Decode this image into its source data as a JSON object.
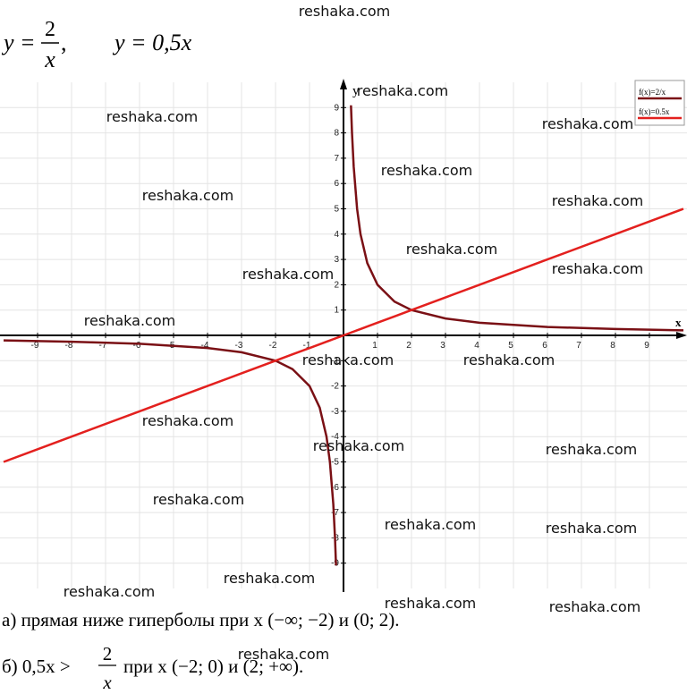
{
  "header": {
    "formula_left": "y =",
    "formula_num": "2",
    "formula_den": "x",
    "formula_comma": ",",
    "formula_right": "y = 0,5x"
  },
  "chart_data": {
    "type": "line",
    "x": [
      -10,
      -8,
      -6,
      -4,
      -3,
      -2,
      -1.5,
      -1,
      -0.7,
      -0.5,
      -0.4,
      -0.3,
      -0.25,
      -0.22,
      0,
      0.22,
      0.25,
      0.3,
      0.4,
      0.5,
      0.7,
      1,
      1.5,
      2,
      3,
      4,
      6,
      8,
      10
    ],
    "series": [
      {
        "name": "f(x)=2/x",
        "color": "#7a1015",
        "values": [
          -0.2,
          -0.25,
          -0.333,
          -0.5,
          -0.667,
          -1,
          -1.333,
          -2,
          -2.857,
          -4,
          -5,
          -6.667,
          -8,
          -9.09,
          null,
          9.09,
          8,
          6.667,
          5,
          4,
          2.857,
          2,
          1.333,
          1,
          0.667,
          0.5,
          0.333,
          0.25,
          0.2
        ]
      },
      {
        "name": "f(x)=0.5x",
        "color": "#e3201e",
        "values": [
          -5,
          -4,
          -3,
          -2,
          -1.5,
          -1,
          -0.75,
          -0.5,
          -0.35,
          -0.25,
          -0.2,
          -0.15,
          -0.125,
          -0.11,
          0,
          0.11,
          0.125,
          0.15,
          0.2,
          0.25,
          0.35,
          0.5,
          0.75,
          1,
          1.5,
          2,
          3,
          4,
          5
        ]
      }
    ],
    "xlim": [
      -10,
      10
    ],
    "ylim": [
      -10,
      10
    ],
    "xticks": [
      -9,
      -8,
      -7,
      -6,
      -5,
      -4,
      -3,
      -2,
      -1,
      1,
      2,
      3,
      4,
      5,
      6,
      7,
      8,
      9
    ],
    "yticks": [
      -9,
      -8,
      -7,
      -6,
      -5,
      -4,
      -3,
      -2,
      -1,
      1,
      2,
      3,
      4,
      5,
      6,
      7,
      8,
      9
    ],
    "xlabel": "x",
    "ylabel": "y",
    "grid": true,
    "legend": "top-right"
  },
  "answers": {
    "a": "а) прямая ниже гиперболы при x (−∞; −2) и (0; 2).",
    "b_left": "б) 0,5x >",
    "b_num": "2",
    "b_den": "x",
    "b_right": "при x (−2; 0) и (2; +∞)."
  },
  "watermarks": [
    "reshaka.com",
    "reshaka.com",
    "reshaka.com",
    "reshaka.com",
    "reshaka.com",
    "reshaka.com",
    "reshaka.com",
    "reshaka.com",
    "reshaka.com",
    "reshaka.com",
    "reshaka.com",
    "reshaka.com",
    "reshaka.com",
    "reshaka.com",
    "reshaka.com",
    "reshaka.com",
    "reshaka.com",
    "reshaka.com",
    "reshaka.com",
    "reshaka.com",
    "reshaka.com",
    "reshaka.com",
    "reshaka.com",
    "reshaka.com"
  ]
}
